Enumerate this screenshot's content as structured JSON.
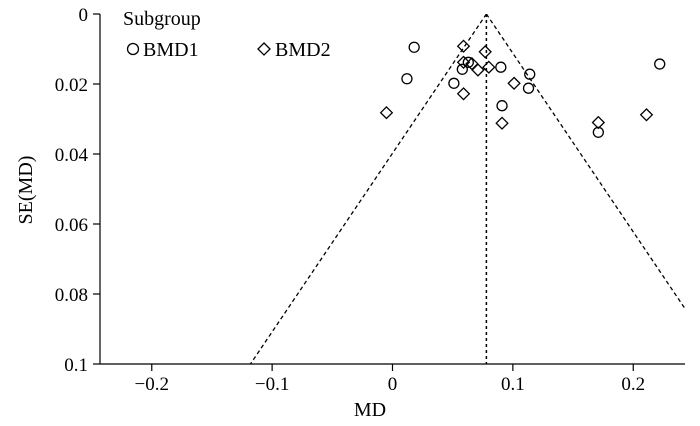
{
  "chart_data": {
    "type": "scatter",
    "title": "",
    "xlabel": "MD",
    "ylabel": "SE(MD)",
    "xlim": [
      -0.243,
      0.243
    ],
    "ylim": [
      0,
      0.1
    ],
    "y_inverted": true,
    "x_ticks": [
      -0.2,
      -0.1,
      0,
      0.1,
      0.2
    ],
    "x_tick_labels": [
      "−0.2",
      "−0.1",
      "0",
      "0.1",
      "0.2"
    ],
    "y_ticks": [
      0,
      0.02,
      0.04,
      0.06,
      0.08,
      0.1
    ],
    "y_tick_labels": [
      "0",
      "0.02",
      "0.04",
      "0.06",
      "0.08",
      "0.1"
    ],
    "grid": false,
    "legend": {
      "title": "Subgroup",
      "placement": "top-left"
    },
    "pooled_estimate": 0.078,
    "funnel_limits": "pseudo 95% confidence limits (dashed)",
    "series": [
      {
        "name": "BMD1",
        "marker": "circle",
        "points": [
          {
            "x": 0.018,
            "y": 0.0095
          },
          {
            "x": 0.012,
            "y": 0.0185
          },
          {
            "x": 0.058,
            "y": 0.0158
          },
          {
            "x": 0.051,
            "y": 0.0198
          },
          {
            "x": 0.063,
            "y": 0.0138
          },
          {
            "x": 0.09,
            "y": 0.0152
          },
          {
            "x": 0.113,
            "y": 0.0212
          },
          {
            "x": 0.114,
            "y": 0.0172
          },
          {
            "x": 0.091,
            "y": 0.0262
          },
          {
            "x": 0.171,
            "y": 0.0338
          },
          {
            "x": 0.222,
            "y": 0.0143
          }
        ]
      },
      {
        "name": "BMD2",
        "marker": "diamond",
        "points": [
          {
            "x": -0.005,
            "y": 0.0282
          },
          {
            "x": 0.059,
            "y": 0.0092
          },
          {
            "x": 0.059,
            "y": 0.0138
          },
          {
            "x": 0.066,
            "y": 0.0142
          },
          {
            "x": 0.071,
            "y": 0.016
          },
          {
            "x": 0.077,
            "y": 0.0108
          },
          {
            "x": 0.08,
            "y": 0.0152
          },
          {
            "x": 0.059,
            "y": 0.0228
          },
          {
            "x": 0.101,
            "y": 0.0198
          },
          {
            "x": 0.091,
            "y": 0.0312
          },
          {
            "x": 0.171,
            "y": 0.031
          },
          {
            "x": 0.211,
            "y": 0.0288
          }
        ]
      }
    ]
  }
}
